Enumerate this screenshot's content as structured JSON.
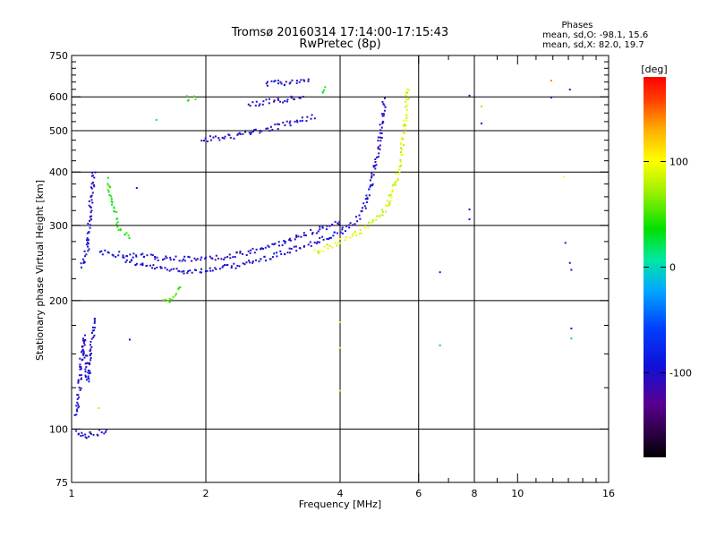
{
  "chart_data": {
    "type": "scatter",
    "title": "Tromsø 20160314 17:14:00-17:15:43",
    "subtitle": "RwPretec (8p)",
    "phases_title": "Phases",
    "phases_line1": "mean, sd,O: -98.1, 15.6",
    "phases_line2": "mean, sd,X:  82.0, 19.7",
    "xlabel": "Frequency [MHz]",
    "ylabel": "Stationary phase Virtual Height [km]",
    "x_scale": "log",
    "y_scale": "log",
    "xlim": [
      1,
      16
    ],
    "ylim": [
      75,
      750
    ],
    "x_major_ticks": [
      1,
      2,
      4,
      6,
      8,
      10,
      16
    ],
    "x_minor_ticks": [
      7,
      9,
      11,
      12,
      13,
      14,
      15
    ],
    "y_major_ticks": [
      75,
      100,
      200,
      300,
      400,
      500,
      600,
      750
    ],
    "y_minor_ticks": [
      125,
      150,
      175,
      225,
      250,
      275,
      325,
      350,
      375,
      425,
      450,
      475,
      525,
      550,
      575,
      625,
      650,
      675,
      700,
      725
    ],
    "gridlines_x": [
      2,
      4,
      6,
      8
    ],
    "gridlines_y": [
      100,
      200,
      300,
      400,
      500,
      600
    ],
    "grid": true,
    "colorbar": {
      "label": "[deg]",
      "min": -180,
      "max": 180,
      "ticks": [
        100,
        0,
        -100
      ],
      "placement": "right"
    },
    "traces": [
      {
        "phase": -100,
        "points": [
          [
            1.3,
            252
          ],
          [
            1.4,
            244
          ],
          [
            1.5,
            241
          ],
          [
            1.6,
            238
          ],
          [
            1.75,
            236
          ],
          [
            1.9,
            236
          ],
          [
            2.05,
            237
          ],
          [
            2.2,
            240
          ],
          [
            2.4,
            244
          ],
          [
            2.6,
            249
          ],
          [
            2.8,
            255
          ],
          [
            3.0,
            261
          ],
          [
            3.2,
            267
          ],
          [
            3.4,
            272
          ],
          [
            3.6,
            278
          ],
          [
            3.8,
            284
          ],
          [
            4.0,
            291
          ],
          [
            4.2,
            300
          ],
          [
            4.4,
            315
          ],
          [
            4.55,
            340
          ],
          [
            4.65,
            370
          ],
          [
            4.75,
            410
          ],
          [
            4.85,
            450
          ],
          [
            4.92,
            500
          ],
          [
            4.97,
            550
          ],
          [
            5.0,
            600
          ]
        ]
      },
      {
        "phase": -100,
        "points": [
          [
            1.15,
            262
          ],
          [
            1.25,
            258
          ],
          [
            1.4,
            256
          ],
          [
            1.6,
            252
          ],
          [
            1.8,
            251
          ],
          [
            2.0,
            252
          ],
          [
            2.2,
            254
          ],
          [
            2.4,
            258
          ],
          [
            2.6,
            264
          ],
          [
            2.8,
            270
          ],
          [
            3.0,
            276
          ],
          [
            3.2,
            283
          ],
          [
            3.4,
            290
          ],
          [
            3.6,
            296
          ],
          [
            3.8,
            302
          ],
          [
            4.0,
            310
          ]
        ]
      },
      {
        "phase": -100,
        "points": [
          [
            1.05,
            240
          ],
          [
            1.08,
            265
          ],
          [
            1.09,
            300
          ],
          [
            1.1,
            340
          ],
          [
            1.11,
            380
          ],
          [
            1.12,
            410
          ]
        ]
      },
      {
        "phase": -100,
        "points": [
          [
            1.02,
            108
          ],
          [
            1.04,
            130
          ],
          [
            1.05,
            150
          ],
          [
            1.06,
            165
          ],
          [
            1.08,
            130
          ],
          [
            1.1,
            150
          ],
          [
            1.12,
            185
          ]
        ]
      },
      {
        "phase": -100,
        "points": [
          [
            1.02,
            99
          ],
          [
            1.05,
            98
          ],
          [
            1.08,
            97
          ],
          [
            1.12,
            98
          ],
          [
            1.16,
            99
          ],
          [
            1.2,
            100
          ]
        ]
      },
      {
        "phase": -100,
        "points": [
          [
            1.95,
            478
          ],
          [
            2.1,
            482
          ],
          [
            2.3,
            488
          ],
          [
            2.5,
            495
          ],
          [
            2.7,
            505
          ],
          [
            2.9,
            515
          ],
          [
            3.1,
            525
          ],
          [
            3.3,
            535
          ],
          [
            3.5,
            545
          ]
        ]
      },
      {
        "phase": -100,
        "points": [
          [
            2.5,
            578
          ],
          [
            2.7,
            585
          ],
          [
            2.9,
            590
          ],
          [
            3.1,
            598
          ],
          [
            3.3,
            605
          ]
        ]
      },
      {
        "phase": -100,
        "points": [
          [
            2.7,
            645
          ],
          [
            2.9,
            650
          ],
          [
            3.1,
            652
          ],
          [
            3.3,
            655
          ],
          [
            3.45,
            660
          ]
        ]
      },
      {
        "phase": 90,
        "points": [
          [
            3.5,
            262
          ],
          [
            3.7,
            268
          ],
          [
            3.9,
            273
          ],
          [
            4.1,
            280
          ],
          [
            4.3,
            288
          ],
          [
            4.5,
            296
          ],
          [
            4.7,
            306
          ],
          [
            4.9,
            318
          ],
          [
            5.1,
            338
          ],
          [
            5.25,
            365
          ],
          [
            5.35,
            395
          ],
          [
            5.45,
            430
          ],
          [
            5.5,
            470
          ],
          [
            5.55,
            510
          ],
          [
            5.6,
            555
          ],
          [
            5.63,
            600
          ],
          [
            5.65,
            640
          ]
        ]
      },
      {
        "phase": 35,
        "points": [
          [
            1.2,
            385
          ],
          [
            1.22,
            350
          ],
          [
            1.25,
            320
          ],
          [
            1.27,
            300
          ],
          [
            1.3,
            290
          ],
          [
            1.35,
            280
          ]
        ]
      },
      {
        "phase": 40,
        "points": [
          [
            1.8,
            598
          ],
          [
            1.9,
            595
          ]
        ]
      },
      {
        "phase": 40,
        "points": [
          [
            3.65,
            625
          ],
          [
            3.7,
            635
          ]
        ]
      },
      {
        "phase": 60,
        "points": [
          [
            1.6,
            202
          ],
          [
            1.65,
            198
          ],
          [
            1.7,
            210
          ],
          [
            1.75,
            215
          ]
        ]
      }
    ],
    "isolated_points": [
      {
        "x": 1.1,
        "y": 98,
        "phase": -100
      },
      {
        "x": 6.7,
        "y": 233,
        "phase": -100
      },
      {
        "x": 6.7,
        "y": 157,
        "phase": -10
      },
      {
        "x": 7.8,
        "y": 327,
        "phase": -100
      },
      {
        "x": 7.8,
        "y": 310,
        "phase": -100
      },
      {
        "x": 7.8,
        "y": 604,
        "phase": -100
      },
      {
        "x": 8.3,
        "y": 570,
        "phase": 70
      },
      {
        "x": 8.3,
        "y": 520,
        "phase": -100
      },
      {
        "x": 11.9,
        "y": 655,
        "phase": 140
      },
      {
        "x": 11.9,
        "y": 598,
        "phase": -100
      },
      {
        "x": 13.1,
        "y": 624,
        "phase": -100
      },
      {
        "x": 12.7,
        "y": 390,
        "phase": 100
      },
      {
        "x": 12.8,
        "y": 273,
        "phase": -100
      },
      {
        "x": 13.1,
        "y": 245,
        "phase": -100
      },
      {
        "x": 13.2,
        "y": 236,
        "phase": -100
      },
      {
        "x": 13.2,
        "y": 172,
        "phase": -100
      },
      {
        "x": 13.2,
        "y": 163,
        "phase": -10
      },
      {
        "x": 4.0,
        "y": 178,
        "phase": 90
      },
      {
        "x": 4.0,
        "y": 155,
        "phase": 90
      },
      {
        "x": 4.0,
        "y": 123,
        "phase": 90
      },
      {
        "x": 1.15,
        "y": 112,
        "phase": 80
      },
      {
        "x": 1.35,
        "y": 162,
        "phase": -100
      },
      {
        "x": 1.55,
        "y": 530,
        "phase": 0
      },
      {
        "x": 1.4,
        "y": 367,
        "phase": -100
      }
    ]
  }
}
